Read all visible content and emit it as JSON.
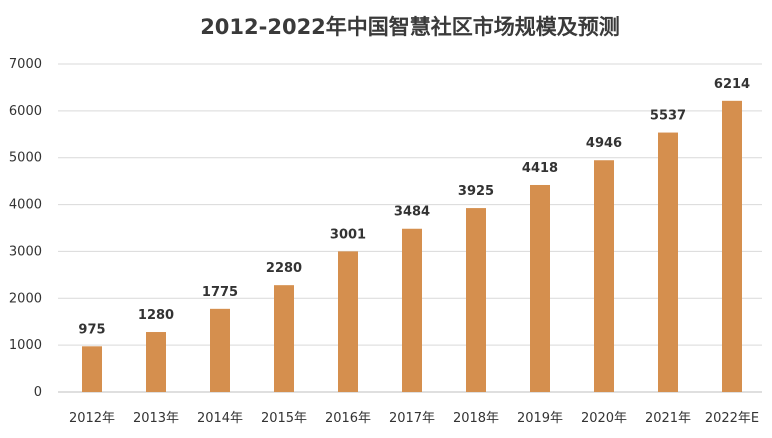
{
  "chart_data": {
    "type": "bar",
    "title": "2012-2022年中国智慧社区市场规模及预测",
    "xlabel": "",
    "ylabel": "",
    "categories": [
      "2012年",
      "2013年",
      "2014年",
      "2015年",
      "2016年",
      "2017年",
      "2018年",
      "2019年",
      "2020年",
      "2021年",
      "2022年E"
    ],
    "values": [
      975,
      1280,
      1775,
      2280,
      3001,
      3484,
      3925,
      4418,
      4946,
      5537,
      6214
    ],
    "ylim": [
      0,
      7000
    ],
    "yticks": [
      0,
      1000,
      2000,
      3000,
      4000,
      5000,
      6000,
      7000
    ],
    "grid": true,
    "legend": "none",
    "bar_color": "#D58F4E"
  }
}
